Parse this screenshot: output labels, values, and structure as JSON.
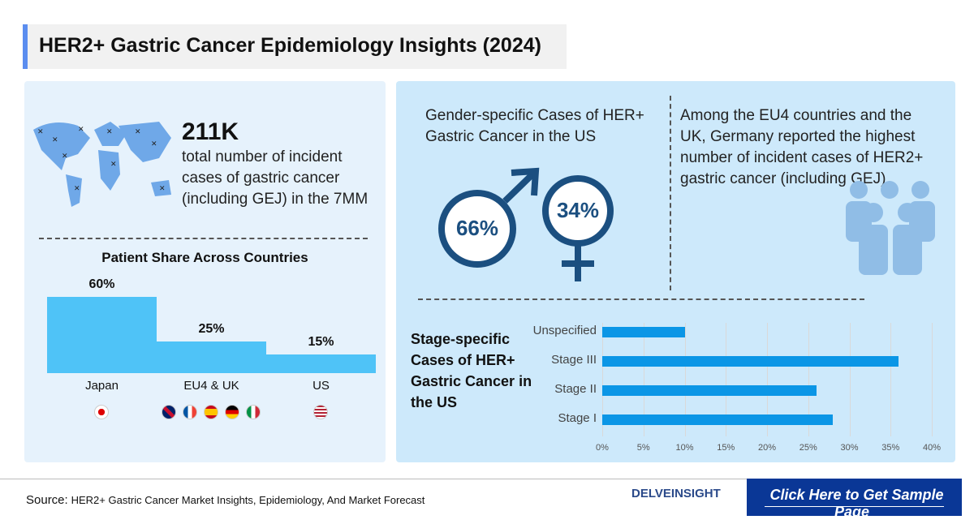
{
  "title": "HER2+ Gastric Cancer Epidemiology Insights (2024)",
  "left": {
    "stat_value": "211K",
    "stat_text": "total number of incident cases of gastric cancer (including GEJ) in the 7MM",
    "icon": "world-map-icon",
    "share_title": "Patient Share Across Countries"
  },
  "right": {
    "gender_title": "Gender-specific Cases of HER+ Gastric Cancer in the US",
    "male_pct": "66%",
    "female_pct": "34%",
    "germany_text": "Among the EU4 countries and the UK, Germany reported the highest number of incident cases of HER2+ gastric cancer (including GEJ)",
    "icon": "people-group-icon",
    "stage_title": "Stage-specific Cases of HER+ Gastric Cancer in the US"
  },
  "chart_data": [
    {
      "type": "bar",
      "title": "Patient Share Across Countries",
      "categories": [
        "Japan",
        "EU4 & UK",
        "US"
      ],
      "values": [
        60,
        25,
        15
      ],
      "labels": [
        "60%",
        "25%",
        "15%"
      ],
      "unit": "%",
      "flags": [
        [
          "jp"
        ],
        [
          "uk",
          "fr",
          "es",
          "de",
          "it"
        ],
        [
          "us"
        ]
      ],
      "color": "#4fc3f7"
    },
    {
      "type": "bar",
      "orientation": "horizontal",
      "title": "Stage-specific Cases of HER+ Gastric Cancer in the US",
      "categories": [
        "Unspecified",
        "Stage III",
        "Stage II",
        "Stage I"
      ],
      "values": [
        10,
        36,
        26,
        28
      ],
      "xlim": [
        0,
        40
      ],
      "ticks": [
        "0%",
        "5%",
        "10%",
        "15%",
        "20%",
        "25%",
        "30%",
        "35%",
        "40%"
      ],
      "grid": true,
      "color": "#0b96e6"
    }
  ],
  "footer": {
    "source_label": "Source:",
    "source_text": "HER2+ Gastric Cancer Market Insights, Epidemiology, And Market Forecast",
    "logo": "DELVEINSIGHT",
    "cta": "Click Here to Get Sample Page",
    "cta_color": "#0a3796"
  }
}
